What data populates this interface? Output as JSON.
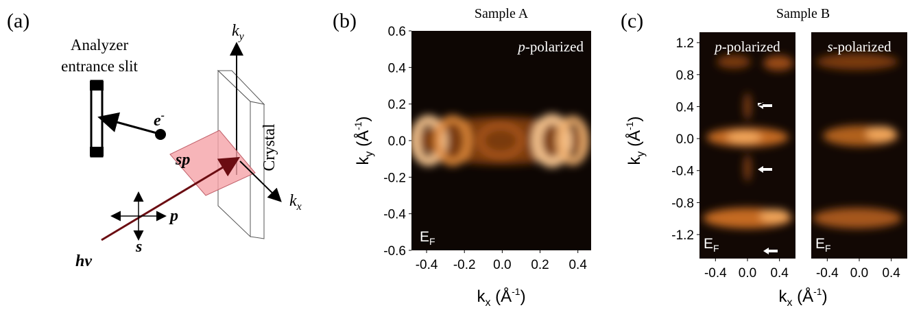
{
  "panel_a": {
    "label": "(a)",
    "analyzer": [
      "Analyzer",
      "entrance slit"
    ],
    "ky": [
      "k",
      "y"
    ],
    "kx": [
      "k",
      "x"
    ],
    "crystal": "Crystal",
    "electron": [
      "e",
      "-"
    ],
    "plane": "sp",
    "p": "p",
    "s": "s",
    "photon": "hv"
  },
  "panel_b": {
    "label": "(b)",
    "title": "Sample A",
    "annotation": [
      "p",
      "-polarized"
    ],
    "energy": [
      "E",
      "F"
    ],
    "x_label": [
      "k",
      "x",
      " (Å",
      "-1",
      ")"
    ],
    "y_label": [
      "k",
      "y",
      " (Å",
      "-1",
      ")"
    ],
    "xlim": [
      -0.48,
      0.47
    ],
    "ylim": [
      -0.6,
      0.6
    ],
    "xticks": [
      -0.4,
      -0.2,
      {
        "value": 0,
        "label": "0.0"
      },
      0.2,
      0.4
    ],
    "yticks": [
      0.6,
      0.4,
      0.2,
      {
        "value": 0,
        "label": "0.0"
      },
      -0.2,
      -0.4,
      -0.6
    ]
  },
  "panel_c": {
    "label": "(c)",
    "title": "Sample B",
    "x_label": [
      "k",
      "x",
      " (Å",
      "-1",
      ")"
    ],
    "y_label": [
      "k",
      "y",
      " (Å",
      "-1",
      ")"
    ],
    "ylim": [
      -1.5,
      1.33
    ],
    "yticks": [
      1.2,
      0.8,
      0.4,
      {
        "value": 0,
        "label": "0.0"
      },
      -0.4,
      -0.8,
      -1.2
    ],
    "maps": [
      {
        "annotation": [
          "p",
          "-polarized"
        ],
        "energy": [
          "E",
          "F"
        ],
        "xlim": [
          -0.6,
          0.6
        ],
        "xticks": [
          -0.4,
          {
            "value": 0,
            "label": "0.0"
          },
          0.4
        ]
      },
      {
        "annotation": [
          "s",
          "-polarized"
        ],
        "energy": [
          "E",
          "F"
        ],
        "xlim": [
          -0.6,
          0.6
        ],
        "xticks": [
          -0.4,
          {
            "value": 0,
            "label": "0.0"
          },
          0.4
        ]
      }
    ]
  }
}
